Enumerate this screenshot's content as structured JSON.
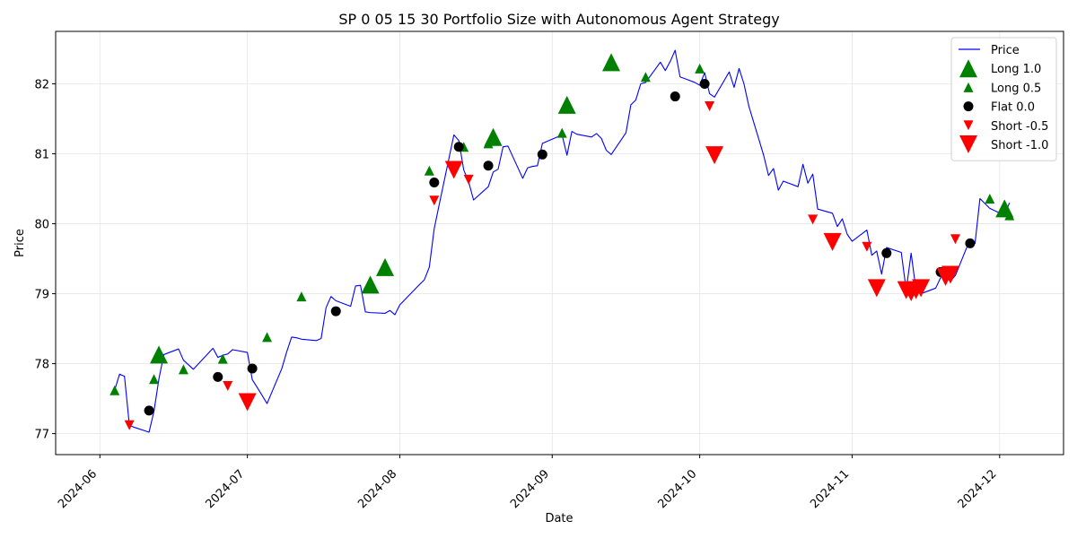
{
  "chart_data": {
    "type": "line",
    "title": "SP 0 05 15 30 Portfolio Size with Autonomous Agent Strategy",
    "xlabel": "Date",
    "ylabel": "Price",
    "xlim": [
      "2024-05-23",
      "2024-12-14"
    ],
    "ylim": [
      76.7,
      82.75
    ],
    "x_ticks": [
      "2024-06",
      "2024-07",
      "2024-08",
      "2024-09",
      "2024-10",
      "2024-11",
      "2024-12"
    ],
    "x_tick_dates": [
      "2024-06-01",
      "2024-07-01",
      "2024-08-01",
      "2024-09-01",
      "2024-10-01",
      "2024-11-01",
      "2024-12-01"
    ],
    "y_ticks": [
      77,
      78,
      79,
      80,
      81,
      82
    ],
    "grid": true,
    "legend_position": "top-right",
    "colors": {
      "price": "#0000ff",
      "long": "#008000",
      "flat": "#000000",
      "short": "#ff0000"
    },
    "series": [
      {
        "name": "Price",
        "kind": "line",
        "x": [
          "2024-06-04",
          "2024-06-05",
          "2024-06-06",
          "2024-06-07",
          "2024-06-08",
          "2024-06-11",
          "2024-06-12",
          "2024-06-13",
          "2024-06-14",
          "2024-06-17",
          "2024-06-18",
          "2024-06-20",
          "2024-06-24",
          "2024-06-25",
          "2024-06-26",
          "2024-06-27",
          "2024-06-28",
          "2024-07-01",
          "2024-07-02",
          "2024-07-03",
          "2024-07-05",
          "2024-07-08",
          "2024-07-09",
          "2024-07-10",
          "2024-07-11",
          "2024-07-12",
          "2024-07-15",
          "2024-07-16",
          "2024-07-17",
          "2024-07-18",
          "2024-07-19",
          "2024-07-22",
          "2024-07-23",
          "2024-07-24",
          "2024-07-25",
          "2024-07-26",
          "2024-07-29",
          "2024-07-30",
          "2024-07-31",
          "2024-08-01",
          "2024-08-05",
          "2024-08-06",
          "2024-08-07",
          "2024-08-08",
          "2024-08-09",
          "2024-08-12",
          "2024-08-13",
          "2024-08-14",
          "2024-08-15",
          "2024-08-16",
          "2024-08-19",
          "2024-08-20",
          "2024-08-21",
          "2024-08-22",
          "2024-08-23",
          "2024-08-26",
          "2024-08-27",
          "2024-08-28",
          "2024-08-29",
          "2024-08-30",
          "2024-09-03",
          "2024-09-04",
          "2024-09-05",
          "2024-09-06",
          "2024-09-09",
          "2024-09-10",
          "2024-09-11",
          "2024-09-12",
          "2024-09-13",
          "2024-09-16",
          "2024-09-17",
          "2024-09-18",
          "2024-09-19",
          "2024-09-20",
          "2024-09-23",
          "2024-09-24",
          "2024-09-25",
          "2024-09-26",
          "2024-09-27",
          "2024-09-30",
          "2024-10-01",
          "2024-10-02",
          "2024-10-03",
          "2024-10-04",
          "2024-10-07",
          "2024-10-08",
          "2024-10-09",
          "2024-10-10",
          "2024-10-11",
          "2024-10-14",
          "2024-10-15",
          "2024-10-16",
          "2024-10-17",
          "2024-10-18",
          "2024-10-21",
          "2024-10-22",
          "2024-10-23",
          "2024-10-24",
          "2024-10-25",
          "2024-10-28",
          "2024-10-29",
          "2024-10-30",
          "2024-10-31",
          "2024-11-01",
          "2024-11-04",
          "2024-11-05",
          "2024-11-06",
          "2024-11-07",
          "2024-11-08",
          "2024-11-11",
          "2024-11-12",
          "2024-11-13",
          "2024-11-14",
          "2024-11-15",
          "2024-11-18",
          "2024-11-19",
          "2024-11-20",
          "2024-11-21",
          "2024-11-22",
          "2024-11-25",
          "2024-11-26",
          "2024-11-27",
          "2024-11-29",
          "2024-12-02",
          "2024-12-03"
        ],
        "y": [
          77.62,
          77.85,
          77.82,
          77.12,
          77.09,
          77.02,
          77.32,
          77.78,
          78.13,
          78.21,
          78.05,
          77.92,
          78.22,
          78.09,
          78.12,
          78.14,
          78.2,
          78.16,
          77.77,
          77.66,
          77.43,
          77.93,
          78.17,
          78.38,
          78.37,
          78.35,
          78.33,
          78.36,
          78.8,
          78.96,
          78.9,
          78.82,
          79.11,
          79.12,
          78.74,
          78.73,
          78.72,
          78.76,
          78.7,
          78.84,
          79.13,
          79.2,
          79.38,
          79.93,
          80.27,
          81.27,
          81.19,
          80.77,
          80.6,
          80.34,
          80.53,
          80.74,
          80.78,
          81.1,
          81.11,
          80.65,
          80.8,
          80.82,
          80.83,
          81.15,
          81.27,
          80.98,
          81.32,
          81.28,
          81.24,
          81.29,
          81.22,
          81.05,
          80.99,
          81.3,
          81.7,
          81.77,
          82.0,
          82.02,
          82.31,
          82.19,
          82.32,
          82.48,
          82.1,
          82.02,
          81.98,
          82.16,
          81.86,
          81.81,
          82.17,
          81.95,
          82.22,
          82.0,
          81.68,
          80.98,
          80.69,
          80.79,
          80.48,
          80.61,
          80.53,
          80.85,
          80.58,
          80.71,
          80.21,
          80.15,
          79.96,
          80.07,
          79.85,
          79.75,
          79.91,
          79.55,
          79.61,
          79.28,
          79.66,
          79.59,
          79.05,
          79.58,
          79.05,
          79.0,
          79.08,
          79.23,
          79.31,
          79.18,
          79.26,
          79.78,
          79.72,
          80.36,
          80.22,
          80.12,
          80.3
        ]
      },
      {
        "name": "Long 1.0",
        "kind": "marker",
        "marker": "triangle-up",
        "size": "large",
        "x": [
          "2024-06-13",
          "2024-07-26",
          "2024-07-29",
          "2024-08-20",
          "2024-09-04",
          "2024-09-13",
          "2024-12-02"
        ],
        "y": [
          78.13,
          79.13,
          79.38,
          81.24,
          81.7,
          82.31,
          80.22
        ]
      },
      {
        "name": "Long 0.5",
        "kind": "marker",
        "marker": "triangle-up",
        "size": "small",
        "x": [
          "2024-06-04",
          "2024-06-12",
          "2024-06-18",
          "2024-06-26",
          "2024-07-05",
          "2024-07-12",
          "2024-08-07",
          "2024-08-14",
          "2024-08-19",
          "2024-09-03",
          "2024-09-20",
          "2024-10-01",
          "2024-11-29",
          "2024-12-03"
        ],
        "y": [
          77.62,
          77.78,
          77.92,
          78.07,
          78.38,
          78.96,
          80.76,
          81.1,
          81.15,
          81.3,
          82.1,
          82.22,
          80.36,
          80.12
        ]
      },
      {
        "name": "Flat 0.0",
        "kind": "marker",
        "marker": "circle",
        "x": [
          "2024-06-11",
          "2024-06-25",
          "2024-07-02",
          "2024-07-19",
          "2024-08-08",
          "2024-08-13",
          "2024-08-19",
          "2024-08-30",
          "2024-09-26",
          "2024-10-02",
          "2024-11-08",
          "2024-11-19",
          "2024-11-25"
        ],
        "y": [
          77.33,
          77.81,
          77.93,
          78.75,
          80.59,
          81.1,
          80.83,
          80.99,
          81.82,
          82.0,
          79.58,
          79.31,
          79.72
        ]
      },
      {
        "name": "Short -0.5",
        "kind": "marker",
        "marker": "triangle-down",
        "size": "small",
        "x": [
          "2024-06-07",
          "2024-06-27",
          "2024-08-08",
          "2024-08-15",
          "2024-10-03",
          "2024-10-24",
          "2024-11-04",
          "2024-11-22"
        ],
        "y": [
          77.12,
          77.68,
          80.33,
          80.63,
          81.68,
          80.06,
          79.67,
          79.78
        ]
      },
      {
        "name": "Short -1.0",
        "kind": "marker",
        "marker": "triangle-down",
        "size": "large",
        "x": [
          "2024-07-01",
          "2024-08-12",
          "2024-10-04",
          "2024-10-28",
          "2024-11-06",
          "2024-11-12",
          "2024-11-13",
          "2024-11-14",
          "2024-11-15",
          "2024-11-20",
          "2024-11-21"
        ],
        "y": [
          77.45,
          80.77,
          80.98,
          79.74,
          79.08,
          79.05,
          79.02,
          79.05,
          79.08,
          79.24,
          79.27
        ]
      }
    ]
  }
}
